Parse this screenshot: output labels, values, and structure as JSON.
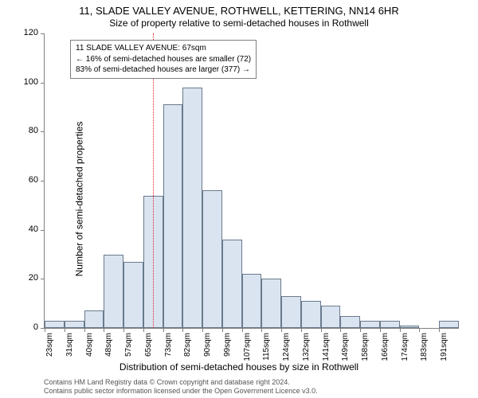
{
  "chart": {
    "type": "histogram",
    "title_main": "11, SLADE VALLEY AVENUE, ROTHWELL, KETTERING, NN14 6HR",
    "title_sub": "Size of property relative to semi-detached houses in Rothwell",
    "ylabel": "Number of semi-detached properties",
    "xlabel": "Distribution of semi-detached houses by size in Rothwell",
    "ylim": [
      0,
      120
    ],
    "ytick_step": 20,
    "yticks": [
      0,
      20,
      40,
      60,
      80,
      100,
      120
    ],
    "bar_fill": "#dae4f0",
    "bar_stroke": "#6a7a8c",
    "background_color": "#ffffff",
    "axis_color": "#808080",
    "refline_color": "#e62020",
    "refline_value": 67,
    "title_fontsize": 13,
    "label_fontsize": 12,
    "tick_fontsize": 10,
    "bins": [
      {
        "x": 23,
        "label": "23sqm",
        "value": 3
      },
      {
        "x": 31,
        "label": "31sqm",
        "value": 3
      },
      {
        "x": 40,
        "label": "40sqm",
        "value": 7
      },
      {
        "x": 48,
        "label": "48sqm",
        "value": 30
      },
      {
        "x": 57,
        "label": "57sqm",
        "value": 27
      },
      {
        "x": 65,
        "label": "65sqm",
        "value": 54
      },
      {
        "x": 73,
        "label": "73sqm",
        "value": 91
      },
      {
        "x": 82,
        "label": "82sqm",
        "value": 98
      },
      {
        "x": 90,
        "label": "90sqm",
        "value": 56
      },
      {
        "x": 99,
        "label": "99sqm",
        "value": 36
      },
      {
        "x": 107,
        "label": "107sqm",
        "value": 22
      },
      {
        "x": 115,
        "label": "115sqm",
        "value": 20
      },
      {
        "x": 124,
        "label": "124sqm",
        "value": 13
      },
      {
        "x": 132,
        "label": "132sqm",
        "value": 11
      },
      {
        "x": 141,
        "label": "141sqm",
        "value": 9
      },
      {
        "x": 149,
        "label": "149sqm",
        "value": 5
      },
      {
        "x": 158,
        "label": "158sqm",
        "value": 3
      },
      {
        "x": 166,
        "label": "166sqm",
        "value": 3
      },
      {
        "x": 174,
        "label": "174sqm",
        "value": 1
      },
      {
        "x": 183,
        "label": "183sqm",
        "value": 0
      },
      {
        "x": 191,
        "label": "191sqm",
        "value": 3
      }
    ],
    "info_box": {
      "line1": "11 SLADE VALLEY AVENUE: 67sqm",
      "line2": "← 16% of semi-detached houses are smaller (72)",
      "line3": "83% of semi-detached houses are larger (377) →"
    },
    "attribution": {
      "line1": "Contains HM Land Registry data © Crown copyright and database right 2024.",
      "line2": "Contains public sector information licensed under the Open Government Licence v3.0."
    }
  }
}
